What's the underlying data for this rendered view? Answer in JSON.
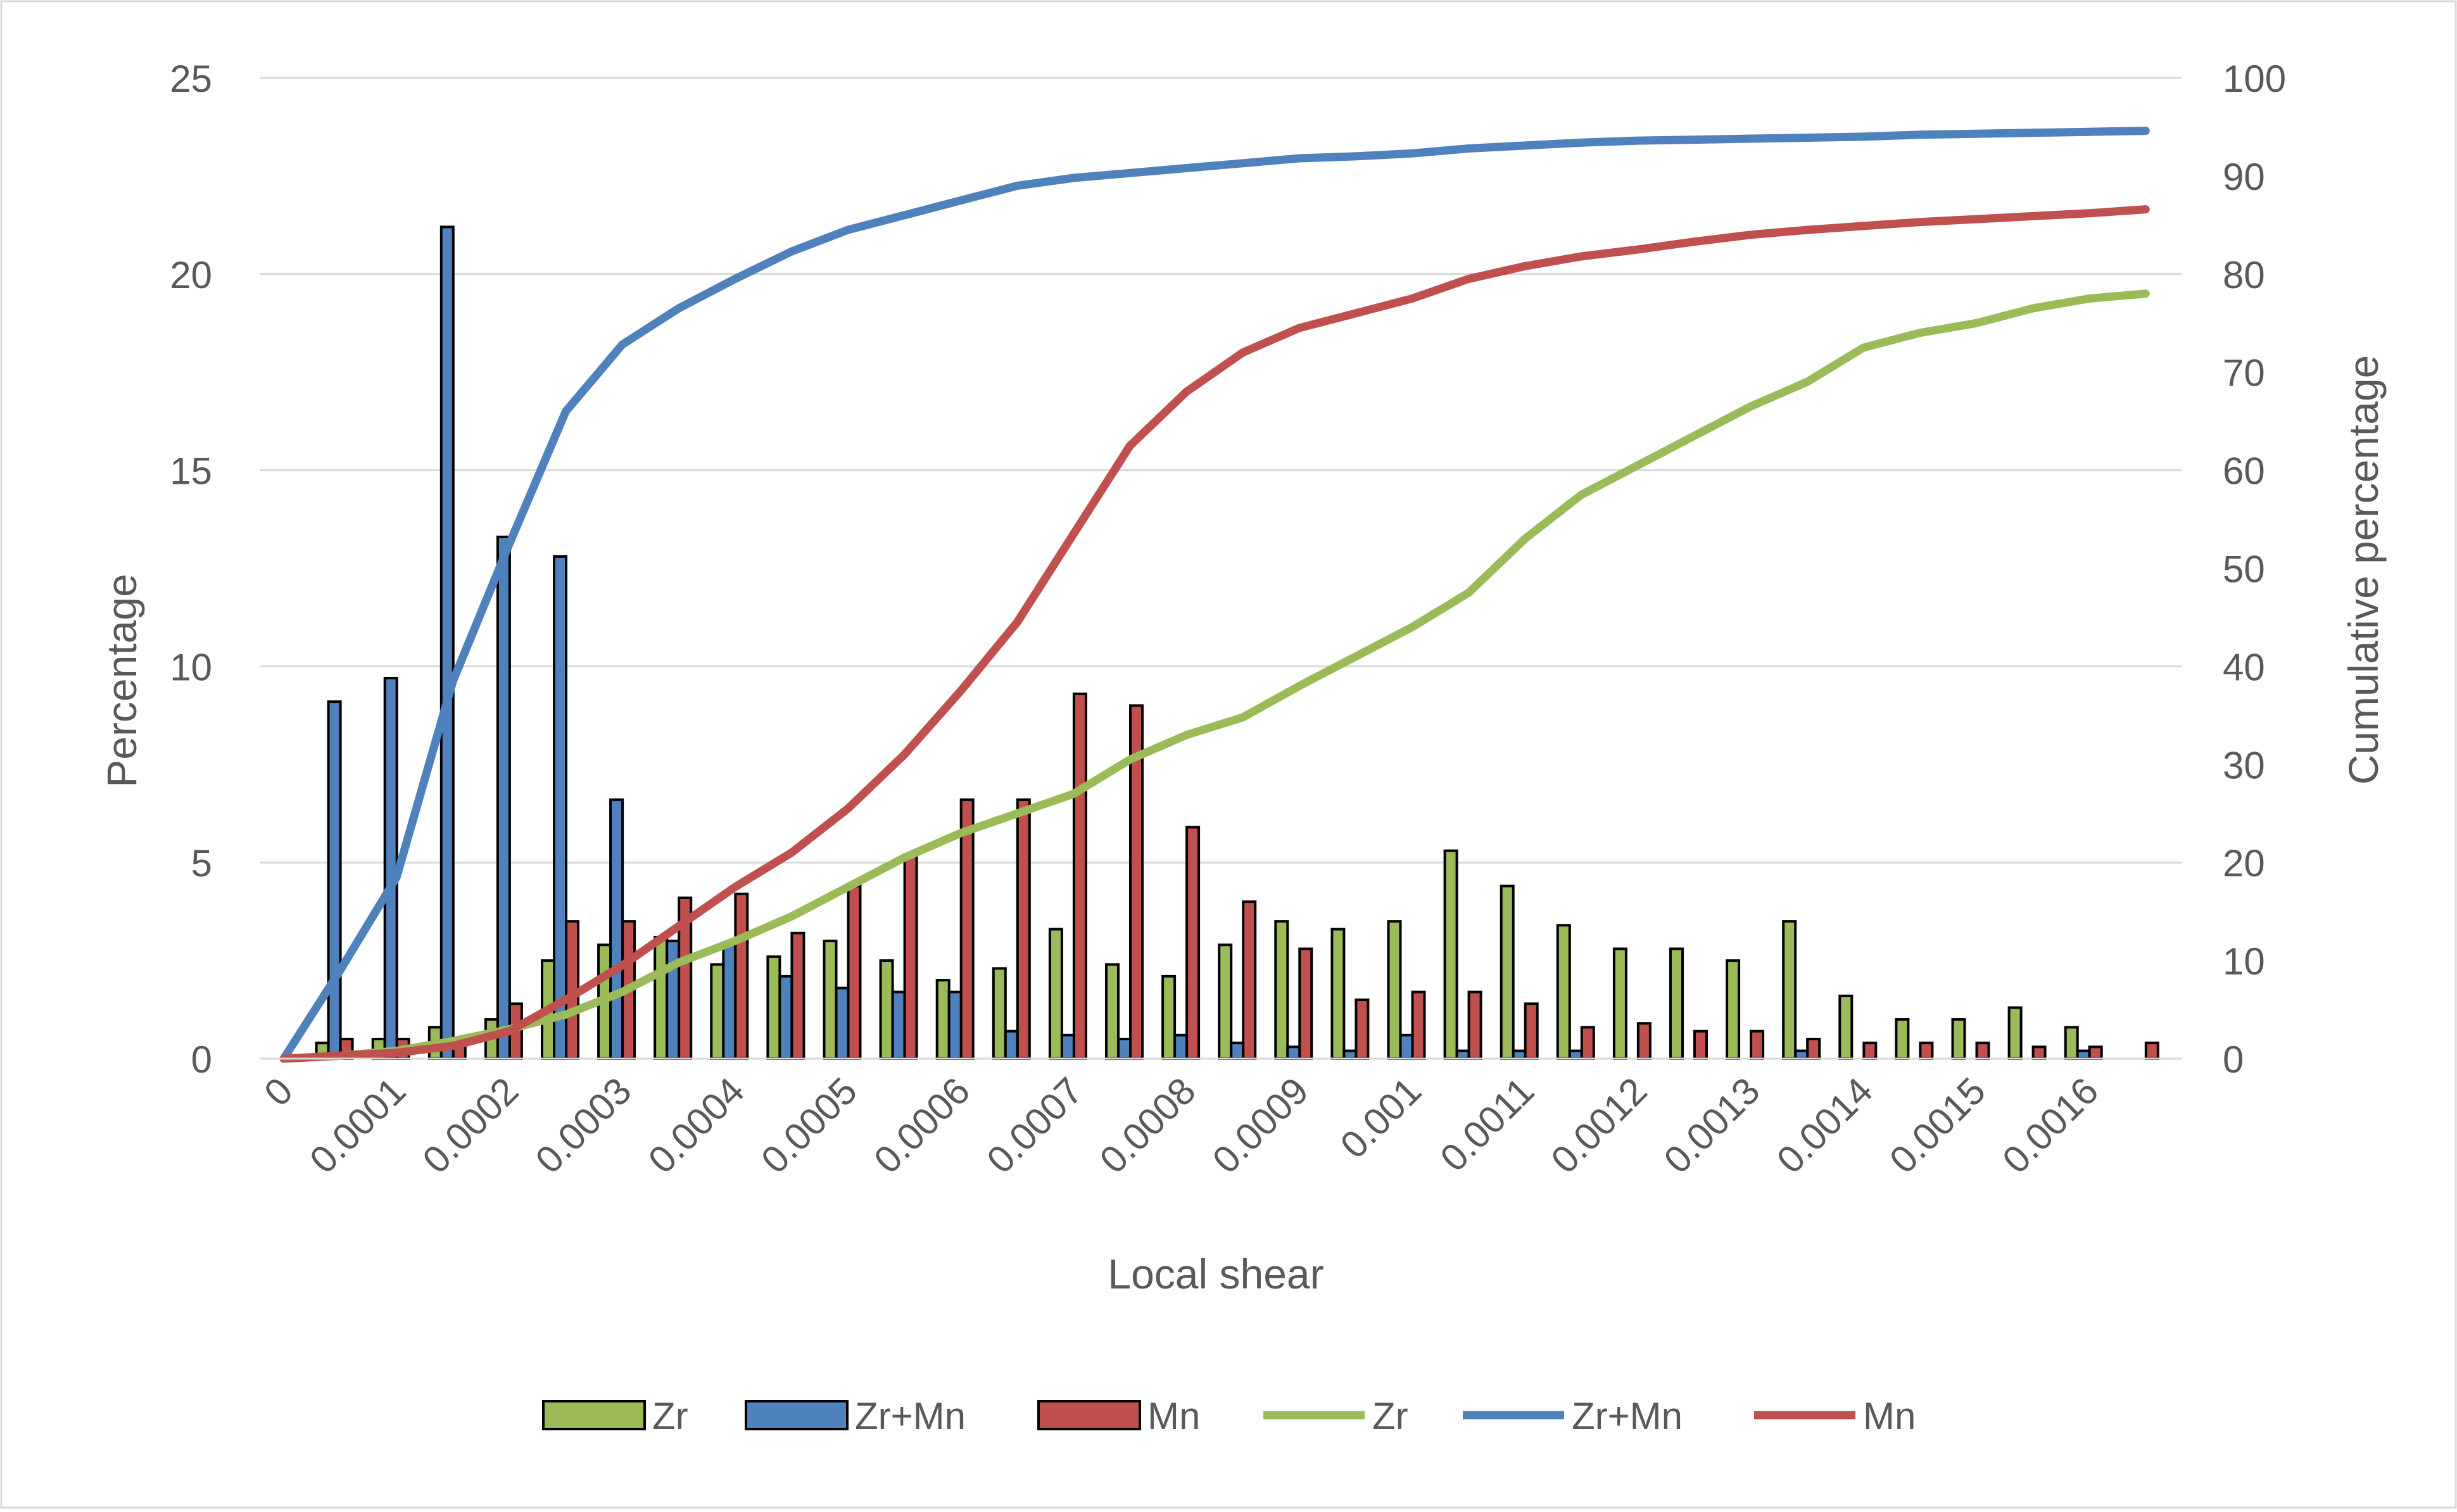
{
  "chart_data": {
    "type": "bar",
    "title": "",
    "xlabel": "Local shear",
    "ylabel": "Percentage",
    "y2label": "Cumulative percentage",
    "ylim": [
      0,
      25
    ],
    "y2lim": [
      0,
      100
    ],
    "yticks": [
      "0",
      "5",
      "10",
      "15",
      "20",
      "25"
    ],
    "y2ticks": [
      "0",
      "10",
      "20",
      "30",
      "40",
      "50",
      "60",
      "70",
      "80",
      "90",
      "100"
    ],
    "x_tick_labels": [
      "0",
      "0.0001",
      "0.0002",
      "0.0003",
      "0.0004",
      "0.0005",
      "0.0006",
      "0.0007",
      "0.0008",
      "0.0009",
      "0.001",
      "0.0011",
      "0.0012",
      "0.0013",
      "0.0014",
      "0.0015",
      "0.0016"
    ],
    "grid": "horizontal",
    "legend_position": "bottom",
    "x": [
      0,
      5e-05,
      0.0001,
      0.00015,
      0.0002,
      0.00025,
      0.0003,
      0.00035,
      0.0004,
      0.00045,
      0.0005,
      0.00055,
      0.0006,
      0.00065,
      0.0007,
      0.00075,
      0.0008,
      0.00085,
      0.0009,
      0.00095,
      0.001,
      0.00105,
      0.0011,
      0.00115,
      0.0012,
      0.00125,
      0.0013,
      0.00135,
      0.0014,
      0.00145,
      0.0015,
      0.00155,
      0.0016,
      0.00165
    ],
    "bar_series": [
      {
        "name": "Zr",
        "color": "#9BBB59",
        "values": [
          0,
          0.4,
          0.5,
          0.8,
          1.0,
          2.5,
          2.9,
          3.1,
          2.4,
          2.6,
          3.0,
          2.5,
          2.0,
          2.3,
          3.3,
          2.4,
          2.1,
          2.9,
          3.5,
          3.3,
          3.5,
          5.3,
          4.4,
          3.4,
          2.8,
          2.8,
          2.5,
          3.5,
          1.6,
          1.0,
          1.0,
          1.3,
          0.8,
          0
        ]
      },
      {
        "name": "Zr+Mn",
        "color": "#4F81BD",
        "values": [
          0,
          9.1,
          9.7,
          21.2,
          13.3,
          12.8,
          6.6,
          3.0,
          2.9,
          2.1,
          1.8,
          1.7,
          1.7,
          0.7,
          0.6,
          0.5,
          0.6,
          0.4,
          0.3,
          0.2,
          0.6,
          0.2,
          0.2,
          0.2,
          0,
          0,
          0,
          0.2,
          0,
          0,
          0,
          0,
          0.2,
          0
        ]
      },
      {
        "name": "Mn",
        "color": "#C0504D",
        "values": [
          0,
          0.5,
          0.5,
          0.5,
          1.4,
          3.5,
          3.5,
          4.1,
          4.2,
          3.2,
          4.4,
          5.2,
          6.6,
          6.6,
          9.3,
          9.0,
          5.9,
          4.0,
          2.8,
          1.5,
          1.7,
          1.7,
          1.4,
          0.8,
          0.9,
          0.7,
          0.7,
          0.5,
          0.4,
          0.4,
          0.4,
          0.3,
          0.3,
          0.4
        ]
      }
    ],
    "line_series": [
      {
        "name": "Zr",
        "color": "#9BBB59",
        "values": [
          0,
          0.3,
          0.8,
          1.8,
          3.0,
          4.5,
          6.8,
          9.8,
          12.0,
          14.5,
          17.5,
          20.5,
          23.0,
          25.0,
          27.0,
          30.5,
          33.0,
          34.8,
          38.0,
          41.0,
          44.0,
          47.5,
          53.0,
          57.5,
          60.5,
          63.5,
          66.5,
          69.0,
          72.5,
          74.0,
          75.0,
          76.5,
          77.5,
          78.0
        ]
      },
      {
        "name": "Zr+Mn",
        "color": "#4F81BD",
        "values": [
          0,
          9.0,
          18.5,
          38.5,
          52.5,
          66.0,
          72.8,
          76.5,
          79.5,
          82.3,
          84.5,
          86.0,
          87.5,
          89.0,
          89.8,
          90.3,
          90.8,
          91.3,
          91.8,
          92.0,
          92.3,
          92.8,
          93.1,
          93.4,
          93.6,
          93.7,
          93.8,
          93.9,
          94.0,
          94.2,
          94.3,
          94.4,
          94.5,
          94.6
        ]
      },
      {
        "name": "Mn",
        "color": "#C0504D",
        "values": [
          0,
          0.3,
          0.6,
          1.3,
          2.8,
          6.0,
          9.5,
          13.5,
          17.5,
          21.0,
          25.5,
          31.0,
          37.5,
          44.5,
          53.5,
          62.5,
          68.0,
          72.0,
          74.5,
          76.0,
          77.5,
          79.5,
          80.8,
          81.8,
          82.5,
          83.3,
          84.0,
          84.5,
          84.9,
          85.3,
          85.6,
          85.9,
          86.2,
          86.6
        ]
      }
    ]
  }
}
